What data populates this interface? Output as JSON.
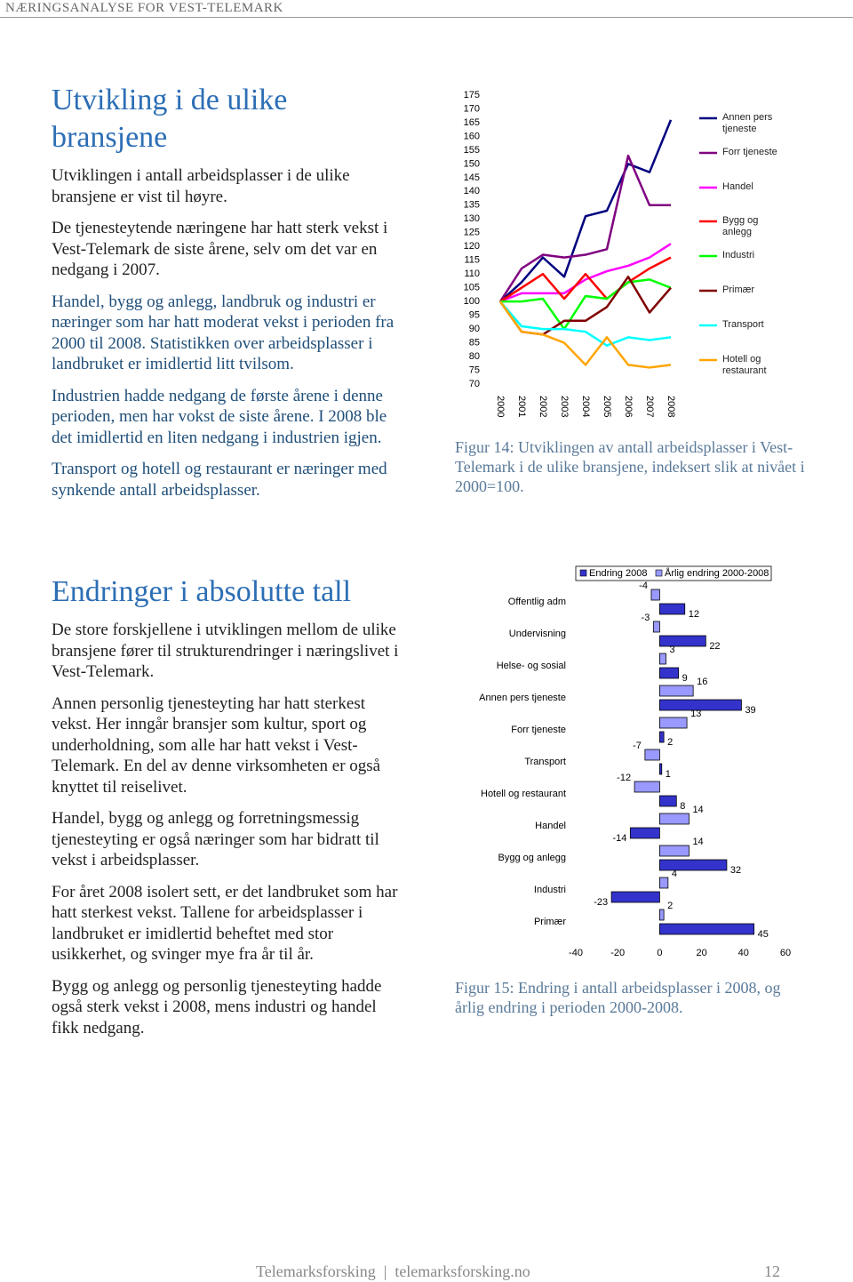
{
  "header": {
    "title": "NÆRINGSANALYSE FOR VEST-TELEMARK"
  },
  "section1": {
    "title": "Utvikling i de ulike bransjene",
    "paragraphs": [
      "Utviklingen i antall arbeidsplasser i de ulike bransjene er vist til høyre.",
      "De tjenesteytende næringene har hatt sterk vekst i Vest-Telemark de siste årene, selv om det var en nedgang i 2007.",
      "Handel, bygg og anlegg, landbruk og industri er næringer som har hatt moderat vekst i perioden fra 2000 til 2008. Statistikken over arbeidsplasser i landbruket er imidlertid litt tvilsom.",
      "Industrien hadde nedgang de første årene i denne perioden, men har vokst de siste årene. I 2008 ble det imidlertid en liten nedgang i industrien igjen.",
      "Transport og hotell og restaurant er næringer med synkende antall arbeidsplasser."
    ]
  },
  "figure14": {
    "caption": "Figur 14: Utviklingen av antall arbeidsplasser i Vest-Telemark i de ulike bransjene, indeksert slik at nivået i 2000=100."
  },
  "section2": {
    "title": "Endringer i absolutte tall",
    "paragraphs": [
      "De store forskjellene i utviklingen mellom de ulike bransjene fører til strukturendringer i næringslivet i Vest-Telemark.",
      "Annen personlig tjenesteyting har hatt sterkest vekst. Her inngår bransjer som kultur, sport og underholdning, som alle har hatt vekst i Vest-Telemark. En del av denne virksomheten er også knyttet til reiselivet.",
      "Handel, bygg og anlegg og forretningsmessig tjenesteyting er også næringer som har bidratt til vekst i arbeidsplasser.",
      "For året 2008 isolert sett, er det landbruket som har hatt sterkest vekst. Tallene for arbeidsplasser i landbruket er imidlertid beheftet med stor usikkerhet, og svinger mye fra år til år.",
      "Bygg og anlegg og personlig tjenesteyting hadde også sterk vekst i 2008, mens industri og handel fikk nedgang."
    ]
  },
  "figure15": {
    "caption": "Figur 15: Endring i antall arbeidsplasser i 2008, og årlig endring i perioden 2000-2008."
  },
  "footer": {
    "org": "Telemarksforsking",
    "url": "telemarksforsking.no",
    "page": "12"
  },
  "chart_data": [
    {
      "type": "line",
      "categories": [
        "2000",
        "2001",
        "2002",
        "2003",
        "2004",
        "2005",
        "2006",
        "2007",
        "2008"
      ],
      "ylim": [
        70,
        175
      ],
      "yticks": [
        70,
        75,
        80,
        85,
        90,
        95,
        100,
        105,
        110,
        115,
        120,
        125,
        130,
        135,
        140,
        145,
        150,
        155,
        160,
        165,
        170,
        175
      ],
      "legend": "right",
      "series": [
        {
          "name": "Annen pers tjeneste",
          "color": "#000080",
          "values": [
            100,
            107,
            116,
            109,
            131,
            133,
            150,
            147,
            166
          ]
        },
        {
          "name": "Forr tjeneste",
          "color": "#800080",
          "values": [
            100,
            112,
            117,
            116,
            117,
            119,
            153,
            135,
            135
          ]
        },
        {
          "name": "Handel",
          "color": "#ff00ff",
          "values": [
            100,
            103,
            103,
            103,
            108,
            111,
            113,
            116,
            121
          ]
        },
        {
          "name": "Bygg og anlegg",
          "color": "#ff0000",
          "values": [
            100,
            105,
            110,
            101,
            110,
            101,
            107,
            112,
            116
          ]
        },
        {
          "name": "Industri",
          "color": "#00ff00",
          "values": [
            100,
            100,
            101,
            90,
            102,
            101,
            107,
            108,
            105
          ]
        },
        {
          "name": "Primær",
          "color": "#800000",
          "values": [
            100,
            89,
            88,
            93,
            93,
            98,
            109,
            96,
            105
          ]
        },
        {
          "name": "Transport",
          "color": "#00ffff",
          "values": [
            100,
            91,
            90,
            90,
            89,
            84,
            87,
            86,
            87
          ]
        },
        {
          "name": "Hotell og restaurant",
          "color": "#ffa500",
          "values": [
            100,
            89,
            88,
            85,
            77,
            87,
            77,
            76,
            77
          ]
        }
      ]
    },
    {
      "type": "hbar",
      "categories": [
        "Offentlig adm",
        "Undervisning",
        "Helse- og sosial",
        "Annen pers tjeneste",
        "Forr tjeneste",
        "Transport",
        "Hotell og restaurant",
        "Handel",
        "Bygg og anlegg",
        "Industri",
        "Primær"
      ],
      "xlim": [
        -40,
        60
      ],
      "xticks": [
        -40,
        -20,
        0,
        20,
        40,
        60
      ],
      "legend": "top",
      "series": [
        {
          "name": "Endring 2008",
          "color": "#3333cc",
          "values": [
            12,
            22,
            9,
            39,
            2,
            1,
            8,
            -14,
            32,
            -23,
            45
          ]
        },
        {
          "name": "Årlig endring 2000-2008",
          "color": "#9999ff",
          "values": [
            -4,
            -3,
            3,
            16,
            13,
            -7,
            -12,
            14,
            14,
            4,
            2
          ]
        }
      ]
    }
  ]
}
